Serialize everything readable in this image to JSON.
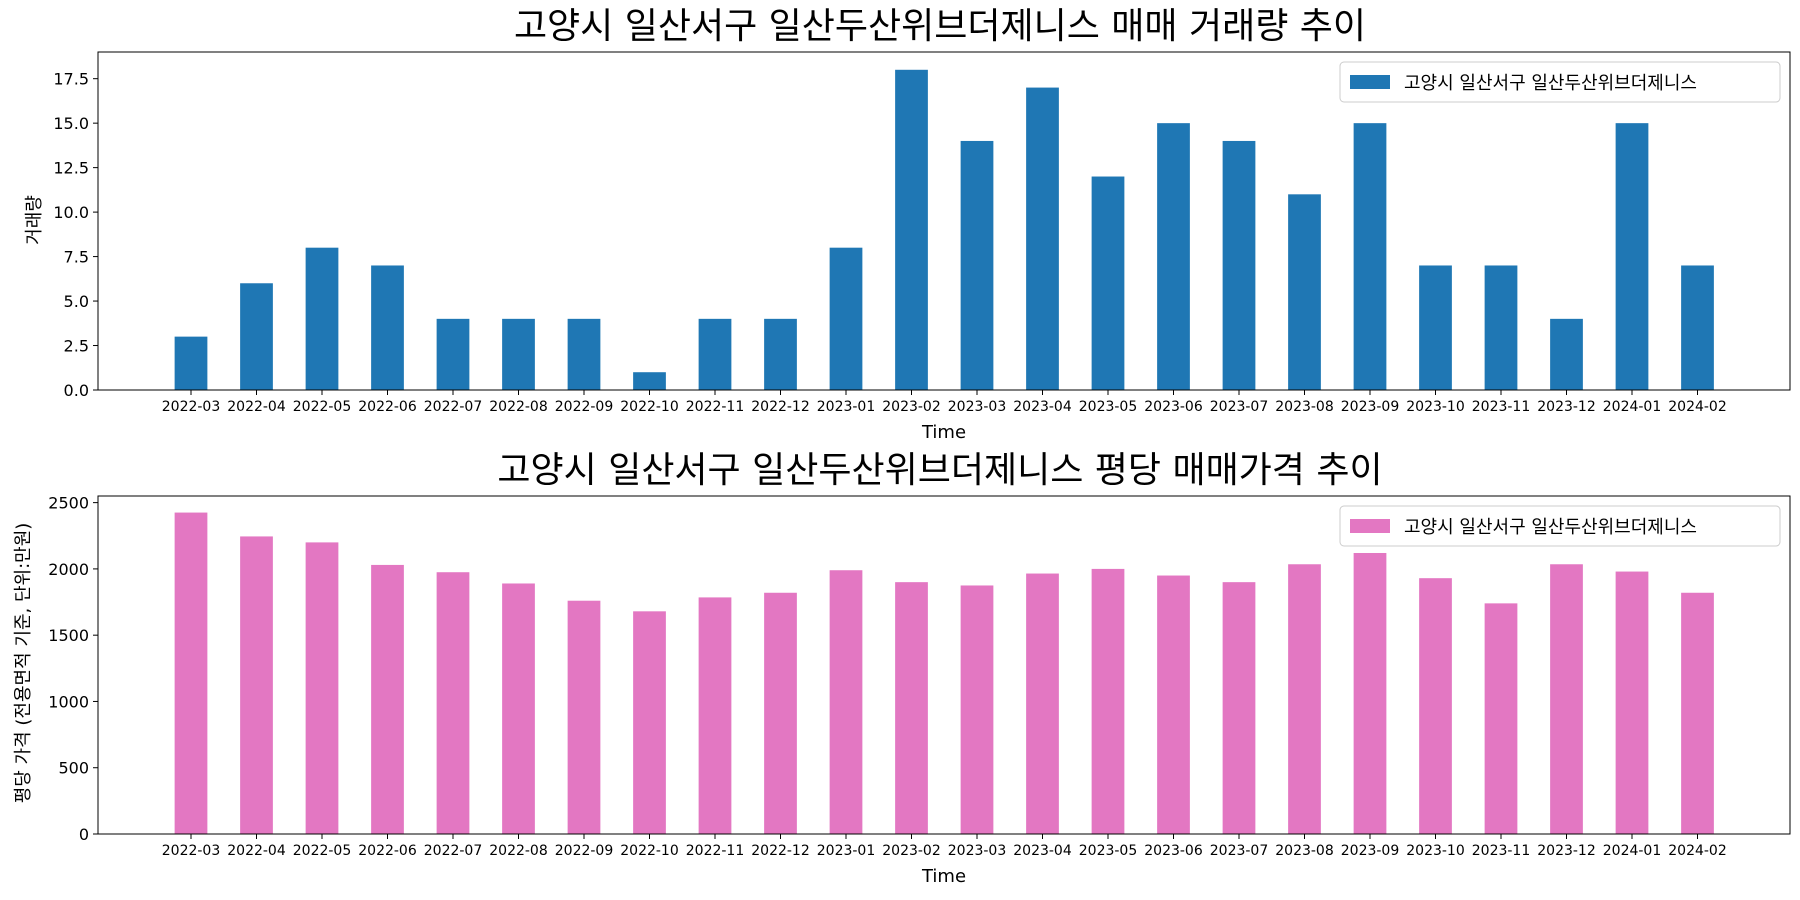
{
  "chart_data": [
    {
      "type": "bar",
      "title": "고양시 일산서구 일산두산위브더제니스 매매 거래량 추이",
      "xlabel": "Time",
      "ylabel": "거래량",
      "ylim": [
        0,
        19
      ],
      "yticks": [
        "0.0",
        "2.5",
        "5.0",
        "7.5",
        "10.0",
        "12.5",
        "15.0",
        "17.5"
      ],
      "categories": [
        "2022-03",
        "2022-04",
        "2022-05",
        "2022-06",
        "2022-07",
        "2022-08",
        "2022-09",
        "2022-10",
        "2022-11",
        "2022-12",
        "2023-01",
        "2023-02",
        "2023-03",
        "2023-04",
        "2023-05",
        "2023-06",
        "2023-07",
        "2023-08",
        "2023-09",
        "2023-10",
        "2023-11",
        "2023-12",
        "2024-01",
        "2024-02"
      ],
      "series": [
        {
          "name": "고양시 일산서구 일산두산위브더제니스",
          "color": "#1f77b4",
          "values": [
            3,
            6,
            8,
            7,
            4,
            4,
            4,
            1,
            4,
            4,
            8,
            18,
            14,
            17,
            12,
            15,
            14,
            11,
            15,
            7,
            7,
            4,
            15,
            7
          ]
        }
      ],
      "legend": "top-right",
      "grid": false
    },
    {
      "type": "bar",
      "title": "고양시 일산서구 일산두산위브더제니스 평당 매매가격 추이",
      "xlabel": "Time",
      "ylabel": "평당 가격 (전용면적 기준, 단위:만원)",
      "ylim": [
        0,
        2550
      ],
      "yticks": [
        "0",
        "500",
        "1000",
        "1500",
        "2000",
        "2500"
      ],
      "categories": [
        "2022-03",
        "2022-04",
        "2022-05",
        "2022-06",
        "2022-07",
        "2022-08",
        "2022-09",
        "2022-10",
        "2022-11",
        "2022-12",
        "2023-01",
        "2023-02",
        "2023-03",
        "2023-04",
        "2023-05",
        "2023-06",
        "2023-07",
        "2023-08",
        "2023-09",
        "2023-10",
        "2023-11",
        "2023-12",
        "2024-01",
        "2024-02"
      ],
      "series": [
        {
          "name": "고양시 일산서구 일산두산위브더제니스",
          "color": "#e377c2",
          "values": [
            2425,
            2245,
            2200,
            2030,
            1975,
            1890,
            1760,
            1680,
            1785,
            1820,
            1990,
            1900,
            1875,
            1965,
            2000,
            1950,
            1900,
            2035,
            2120,
            1930,
            1740,
            2035,
            1980,
            1820
          ]
        }
      ],
      "legend": "top-right",
      "grid": false
    }
  ]
}
